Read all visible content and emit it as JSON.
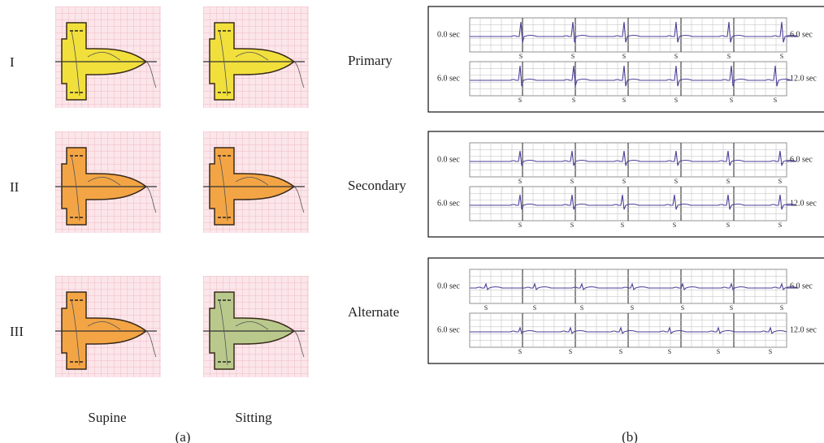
{
  "panel_a": {
    "rows": [
      "I",
      "II",
      "III"
    ],
    "columns": [
      "Supine",
      "Sitting"
    ],
    "caption": "(a)"
  },
  "panel_b": {
    "caption": "(b)",
    "marker": "S",
    "leads": [
      {
        "name": "Primary",
        "strips": [
          {
            "start": "0.0 sec",
            "end": "6.0 sec"
          },
          {
            "start": "6.0 sec",
            "end": "12.0 sec"
          }
        ]
      },
      {
        "name": "Secondary",
        "strips": [
          {
            "start": "0.0 sec",
            "end": "6.0 sec"
          },
          {
            "start": "6.0 sec",
            "end": "12.0 sec"
          }
        ]
      },
      {
        "name": "Alternate",
        "strips": [
          {
            "start": "0.0 sec",
            "end": "6.0 sec"
          },
          {
            "start": "6.0 sec",
            "end": "12.0 sec"
          }
        ]
      }
    ]
  }
}
